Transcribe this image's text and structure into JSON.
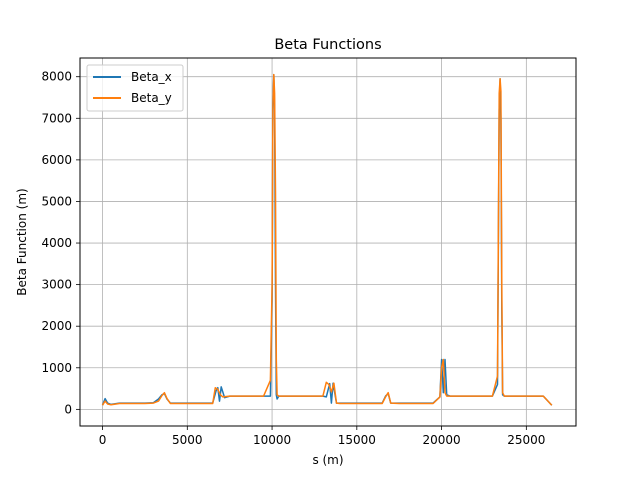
{
  "chart_data": {
    "type": "line",
    "title": "Beta Functions",
    "xlabel": "s (m)",
    "ylabel": "Beta Function (m)",
    "xlim": [
      -1330,
      27930
    ],
    "ylim": [
      -400,
      8450
    ],
    "xticks": [
      0,
      5000,
      10000,
      15000,
      20000,
      25000
    ],
    "yticks": [
      0,
      1000,
      2000,
      3000,
      4000,
      5000,
      6000,
      7000,
      8000
    ],
    "grid": true,
    "legend_position": "top-left",
    "colors": {
      "beta_x": "#1f77b4",
      "beta_y": "#ff7f0e",
      "grid": "#b0b0b0"
    },
    "series": [
      {
        "name": "Beta_x",
        "color": "#1f77b4",
        "x": [
          0,
          150,
          300,
          500,
          1000,
          1500,
          2000,
          2500,
          3000,
          3300,
          3500,
          3650,
          3800,
          4000,
          4500,
          5000,
          5500,
          6000,
          6500,
          6700,
          6800,
          6900,
          7000,
          7200,
          7500,
          8000,
          8500,
          9000,
          9500,
          9900,
          10000,
          10050,
          10100,
          10150,
          10200,
          10250,
          10300,
          10400,
          10600,
          11000,
          11500,
          12000,
          12500,
          13000,
          13200,
          13400,
          13500,
          13600,
          13800,
          14000,
          14500,
          15000,
          15500,
          16000,
          16500,
          16700,
          16850,
          17000,
          17500,
          18000,
          18500,
          19000,
          19500,
          19900,
          20000,
          20100,
          20200,
          20300,
          20500,
          21000,
          21500,
          22000,
          22500,
          23000,
          23300,
          23400,
          23450,
          23500,
          23550,
          23600,
          23700,
          24000,
          24500,
          25000,
          25500,
          26000,
          26500
        ],
        "y": [
          100,
          260,
          150,
          120,
          150,
          150,
          150,
          150,
          160,
          250,
          350,
          380,
          250,
          150,
          150,
          150,
          150,
          150,
          150,
          450,
          520,
          200,
          540,
          280,
          320,
          320,
          320,
          320,
          320,
          320,
          2600,
          7300,
          8050,
          7200,
          3000,
          350,
          250,
          320,
          320,
          320,
          320,
          320,
          320,
          320,
          300,
          620,
          150,
          630,
          150,
          150,
          150,
          150,
          150,
          150,
          150,
          320,
          380,
          150,
          150,
          150,
          150,
          150,
          150,
          300,
          1200,
          400,
          1200,
          350,
          320,
          320,
          320,
          320,
          320,
          320,
          600,
          7200,
          7950,
          7000,
          2400,
          350,
          320,
          320,
          320,
          320,
          320,
          320,
          100
        ]
      },
      {
        "name": "Beta_y",
        "color": "#ff7f0e",
        "x": [
          0,
          150,
          300,
          500,
          1000,
          1500,
          2000,
          2500,
          3000,
          3300,
          3500,
          3650,
          3800,
          4000,
          4500,
          5000,
          5500,
          6000,
          6500,
          6650,
          6800,
          6950,
          7100,
          7500,
          8000,
          8500,
          9000,
          9500,
          9900,
          10000,
          10050,
          10100,
          10150,
          10200,
          10250,
          10300,
          10400,
          10600,
          11000,
          11500,
          12000,
          12500,
          13000,
          13200,
          13350,
          13500,
          13650,
          13800,
          14000,
          14500,
          15000,
          15500,
          16000,
          16500,
          16700,
          16850,
          17000,
          17500,
          18000,
          18500,
          19000,
          19500,
          19900,
          20000,
          20100,
          20200,
          20300,
          20500,
          21000,
          21500,
          22000,
          22500,
          23000,
          23300,
          23400,
          23450,
          23500,
          23550,
          23600,
          23700,
          24000,
          24500,
          25000,
          25500,
          26000,
          26500
        ],
        "y": [
          100,
          200,
          130,
          110,
          140,
          140,
          140,
          140,
          150,
          200,
          330,
          400,
          260,
          140,
          140,
          140,
          140,
          140,
          140,
          520,
          480,
          350,
          300,
          320,
          320,
          320,
          320,
          320,
          700,
          3000,
          7250,
          8050,
          7600,
          5200,
          1200,
          350,
          320,
          320,
          320,
          320,
          320,
          320,
          320,
          650,
          600,
          420,
          630,
          150,
          140,
          140,
          140,
          140,
          140,
          140,
          300,
          400,
          150,
          140,
          140,
          140,
          140,
          140,
          300,
          1000,
          1200,
          400,
          320,
          320,
          320,
          320,
          320,
          320,
          320,
          800,
          7600,
          7950,
          7650,
          3000,
          400,
          320,
          320,
          320,
          320,
          320,
          320,
          100
        ]
      }
    ]
  }
}
